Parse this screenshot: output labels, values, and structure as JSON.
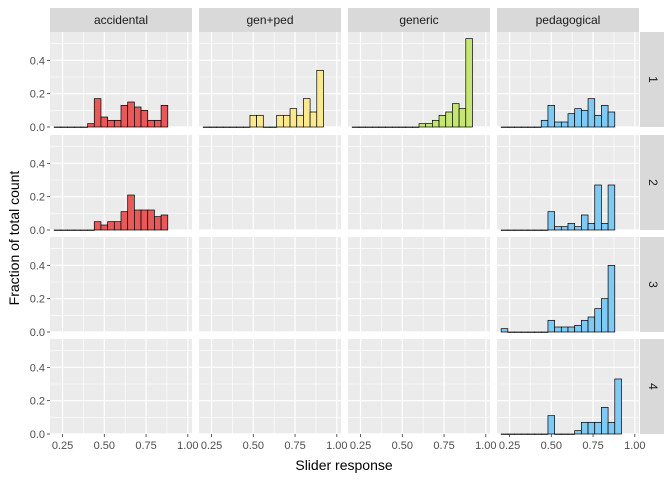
{
  "chart_data": {
    "type": "bar",
    "subtype": "faceted-histogram",
    "xlabel": "Slider response",
    "ylabel": "Fraction of total count",
    "xlim": [
      0.175,
      1.025
    ],
    "ylim": [
      0,
      0.57
    ],
    "x_ticks": [
      0.25,
      0.5,
      0.75,
      1.0
    ],
    "x_tick_labels": [
      "0.25",
      "0.50",
      "0.75",
      "1.00"
    ],
    "y_ticks": [
      0,
      0.2,
      0.4
    ],
    "y_tick_labels": [
      "0.0",
      "0.2",
      "0.4"
    ],
    "grid": true,
    "legend": "none",
    "bin_width": 0.04,
    "bin_centers": [
      0.22,
      0.26,
      0.3,
      0.34,
      0.38,
      0.42,
      0.46,
      0.5,
      0.54,
      0.58,
      0.62,
      0.66,
      0.7,
      0.74,
      0.78,
      0.82,
      0.86,
      0.9,
      0.94,
      0.98
    ],
    "columns": [
      "accidental",
      "gen+ped",
      "generic",
      "pedagogical"
    ],
    "rows": [
      "1",
      "2",
      "3",
      "4"
    ],
    "colors": {
      "accidental": "#E65A5A",
      "gen+ped": "#FCE88F",
      "generic": "#C6E673",
      "pedagogical": "#7FC9F2"
    },
    "facets": [
      {
        "column": "accidental",
        "row": "1",
        "values": [
          0,
          0,
          0,
          0,
          0,
          0.02,
          0.17,
          0.06,
          0.04,
          0.04,
          0.13,
          0.15,
          0.12,
          0.1,
          0.04,
          0.04,
          0.13,
          0,
          0,
          0
        ]
      },
      {
        "column": "gen+ped",
        "row": "1",
        "values": [
          0,
          0,
          0,
          0,
          0,
          0,
          0,
          0.07,
          0.07,
          0,
          0,
          0.07,
          0.07,
          0.11,
          0.07,
          0.17,
          0.09,
          0.34,
          0,
          0
        ]
      },
      {
        "column": "generic",
        "row": "1",
        "values": [
          0,
          0,
          0,
          0,
          0,
          0,
          0,
          0,
          0,
          0,
          0.02,
          0.02,
          0.04,
          0.07,
          0.09,
          0.14,
          0.11,
          0.53,
          0,
          0
        ]
      },
      {
        "column": "pedagogical",
        "row": "1",
        "values": [
          0,
          0,
          0,
          0,
          0,
          0,
          0.04,
          0.13,
          0.03,
          0.03,
          0.08,
          0.11,
          0.1,
          0.17,
          0.07,
          0.13,
          0.09,
          0,
          0,
          0
        ]
      },
      {
        "column": "accidental",
        "row": "2",
        "values": [
          0,
          0,
          0,
          0,
          0,
          0,
          0.05,
          0.03,
          0.05,
          0.05,
          0.11,
          0.21,
          0.12,
          0.12,
          0.12,
          0.08,
          0.09,
          0,
          0,
          0
        ]
      },
      {
        "column": "pedagogical",
        "row": "2",
        "values": [
          0,
          0,
          0,
          0,
          0,
          0,
          0,
          0.11,
          0.02,
          0.02,
          0.04,
          0.02,
          0.09,
          0.04,
          0.27,
          0.04,
          0.27,
          0,
          0,
          0
        ]
      },
      {
        "column": "pedagogical",
        "row": "3",
        "values": [
          0.02,
          0,
          0,
          0,
          0,
          0,
          0,
          0.07,
          0.03,
          0.03,
          0.03,
          0.04,
          0.07,
          0.09,
          0.14,
          0.2,
          0.4,
          0,
          0,
          0
        ]
      },
      {
        "column": "pedagogical",
        "row": "4",
        "values": [
          0,
          0,
          0,
          0,
          0,
          0,
          0,
          0.11,
          0,
          0,
          0,
          0.02,
          0.07,
          0.07,
          0.07,
          0.16,
          0.07,
          0.33,
          0,
          0
        ]
      }
    ]
  }
}
